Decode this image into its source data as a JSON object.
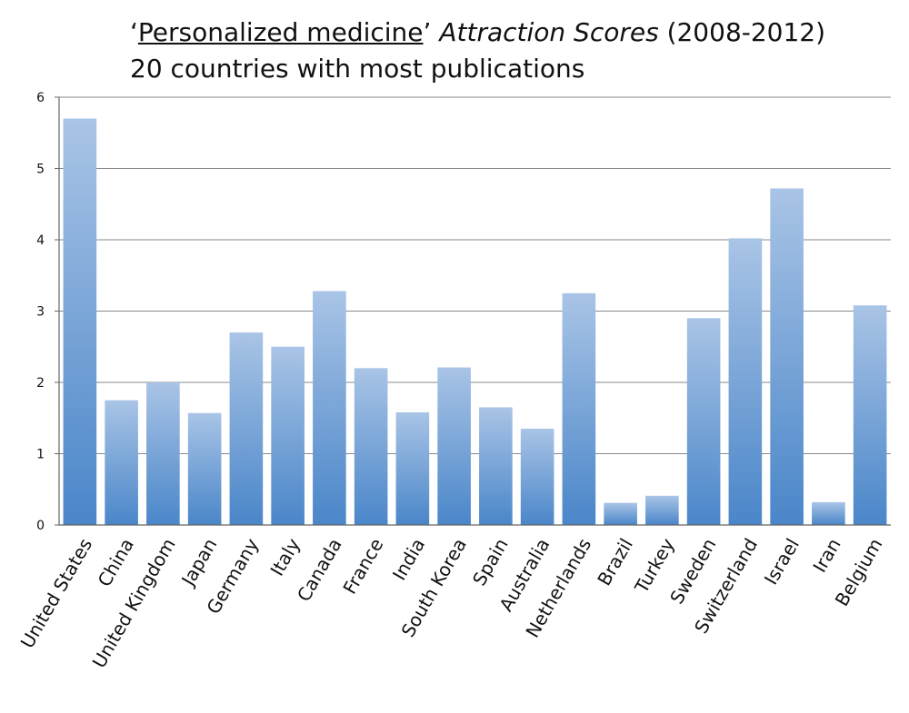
{
  "title": {
    "open_quote": "‘",
    "underlined": "Personalized medicine",
    "close_quote": "’ ",
    "italic": "Attraction Scores",
    "rest": " (2008-2012)",
    "subtitle": "20 countries with most publications"
  },
  "colors": {
    "bar_top": "#a9c4e6",
    "bar_bottom": "#4a86c9",
    "grid": "#8a8a8a",
    "axis": "#666666"
  },
  "chart_data": {
    "type": "bar",
    "title": "‘Personalized medicine’ Attraction Scores (2008-2012)",
    "subtitle": "20 countries with most publications",
    "xlabel": "",
    "ylabel": "",
    "ylim": [
      0,
      6
    ],
    "yticks": [
      0,
      1,
      2,
      3,
      4,
      5,
      6
    ],
    "grid": true,
    "categories": [
      "United States",
      "China",
      "United Kingdom",
      "Japan",
      "Germany",
      "Italy",
      "Canada",
      "France",
      "India",
      "South Korea",
      "Spain",
      "Australia",
      "Netherlands",
      "Brazil",
      "Turkey",
      "Sweden",
      "Switzerland",
      "Israel",
      "Iran",
      "Belgium"
    ],
    "values": [
      5.7,
      1.75,
      2.0,
      1.57,
      2.7,
      2.5,
      3.28,
      2.2,
      1.58,
      2.21,
      1.65,
      1.35,
      3.25,
      0.31,
      0.41,
      2.9,
      4.02,
      4.72,
      0.32,
      3.08
    ]
  }
}
